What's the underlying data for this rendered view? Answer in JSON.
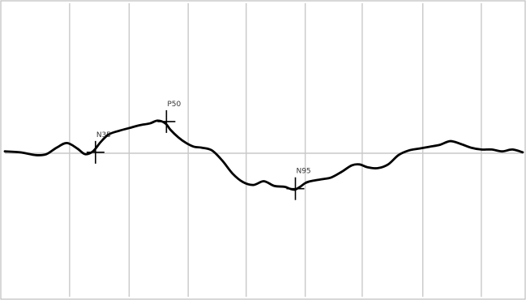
{
  "chart_data": {
    "type": "line",
    "title": "",
    "xlabel": "",
    "ylabel": "",
    "x_range": [
      0,
      100
    ],
    "y_range": [
      -16,
      16
    ],
    "grid": true,
    "vertical_grid_x": [
      12.5,
      24,
      35.4,
      46.6,
      58,
      69,
      80.7,
      92
    ],
    "baseline_y": 0,
    "series": [
      {
        "x": [
          0,
          3,
          6,
          8,
          10,
          12,
          14,
          15.5,
          17,
          18.5,
          20,
          22,
          24,
          26,
          28,
          29.5,
          31,
          32,
          33.5,
          35,
          36.5,
          38,
          40,
          42,
          44,
          46,
          48,
          50,
          52,
          54,
          55,
          56,
          57,
          58,
          59,
          61,
          63,
          65,
          67,
          68.5,
          70,
          72,
          74,
          76,
          78,
          80,
          82,
          84,
          86,
          88,
          90,
          92,
          94,
          96,
          98,
          100
        ],
        "y": [
          0.2,
          0.1,
          -0.2,
          -0.1,
          0.6,
          1.1,
          0.5,
          -0.1,
          0.2,
          1.2,
          2.0,
          2.4,
          2.7,
          3.0,
          3.2,
          3.5,
          3.2,
          2.5,
          1.7,
          1.1,
          0.7,
          0.6,
          0.3,
          -0.8,
          -2.2,
          -3.1,
          -3.4,
          -3.0,
          -3.5,
          -3.6,
          -3.8,
          -3.9,
          -3.6,
          -3.2,
          -3.0,
          -2.8,
          -2.6,
          -2.0,
          -1.3,
          -1.2,
          -1.5,
          -1.6,
          -1.2,
          -0.2,
          0.3,
          0.5,
          0.7,
          0.9,
          1.3,
          1.0,
          0.6,
          0.4,
          0.4,
          0.2,
          0.4,
          0.1
        ]
      }
    ],
    "peaks": [
      {
        "label": "N35",
        "x": 17.5,
        "y": 0.1
      },
      {
        "label": "P50",
        "x": 31.2,
        "y": 3.4
      },
      {
        "label": "N95",
        "x": 56.1,
        "y": -3.8
      }
    ]
  }
}
